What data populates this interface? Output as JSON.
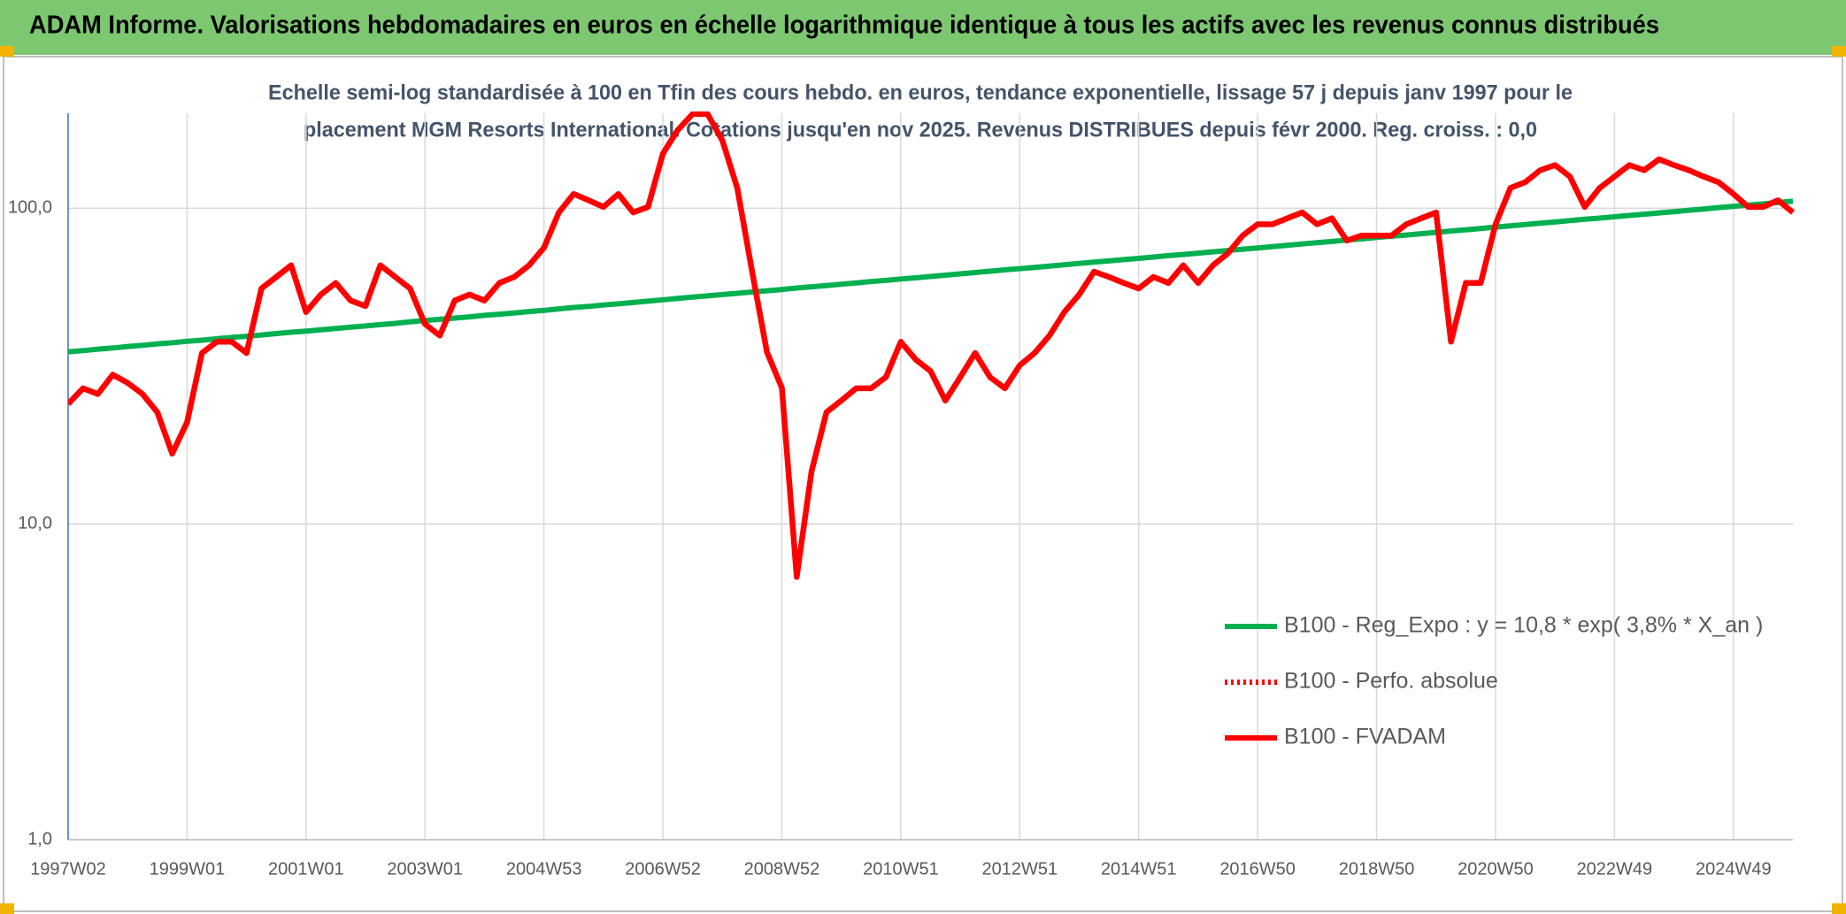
{
  "chart_data": {
    "type": "line",
    "title": "ADAM Informe. Valorisations hebdomadaires en euros en échelle logarithmique identique à tous les actifs avec les revenus connus distribués",
    "subtitle_lines": [
      "Echelle semi-log standardisée à 100 en Tfin des cours hebdo. en euros, tendance exponentielle, lissage 57 j depuis janv 1997 pour le",
      "placement MGM Resorts International. Cotations jusqu'en nov 2025. Revenus DISTRIBUES depuis févr 2000. Reg. croiss. : 0,0"
    ],
    "categories": [
      "1997W02",
      null,
      null,
      null,
      null,
      null,
      null,
      null,
      "1999W01",
      null,
      null,
      null,
      null,
      null,
      null,
      null,
      "2001W01",
      null,
      null,
      null,
      null,
      null,
      null,
      null,
      "2003W01",
      null,
      null,
      null,
      null,
      null,
      null,
      null,
      "2004W53",
      null,
      null,
      null,
      null,
      null,
      null,
      null,
      "2006W52",
      null,
      null,
      null,
      null,
      null,
      null,
      null,
      "2008W52",
      null,
      null,
      null,
      null,
      null,
      null,
      null,
      "2010W51",
      null,
      null,
      null,
      null,
      null,
      null,
      null,
      "2012W51",
      null,
      null,
      null,
      null,
      null,
      null,
      null,
      "2014W51",
      null,
      null,
      null,
      null,
      null,
      null,
      null,
      "2016W50",
      null,
      null,
      null,
      null,
      null,
      null,
      null,
      "2018W50",
      null,
      null,
      null,
      null,
      null,
      null,
      null,
      "2020W50",
      null,
      null,
      null,
      null,
      null,
      null,
      null,
      "2022W49",
      null,
      null,
      null,
      null,
      null,
      null,
      null,
      "2024W49",
      null,
      null,
      null,
      null
    ],
    "series": [
      {
        "name": "B100 - Reg_Expo : y = 10,8 * exp( 3,8% *  X_an )",
        "color": "#00b050",
        "style": "solid",
        "values": [
          35.1,
          35.4,
          35.8,
          36.1,
          36.5,
          36.8,
          37.2,
          37.5,
          37.9,
          38.2,
          38.6,
          39.0,
          39.3,
          39.7,
          40.1,
          40.5,
          40.8,
          41.2,
          41.6,
          42.0,
          42.4,
          42.8,
          43.2,
          43.7,
          44.1,
          44.5,
          44.9,
          45.3,
          45.8,
          46.2,
          46.6,
          47.1,
          47.5,
          48.0,
          48.5,
          48.9,
          49.4,
          49.8,
          50.3,
          50.8,
          51.3,
          51.8,
          52.3,
          52.8,
          53.3,
          53.8,
          54.3,
          54.8,
          55.3,
          55.9,
          56.4,
          56.9,
          57.5,
          58.0,
          58.6,
          59.1,
          59.7,
          60.2,
          60.8,
          61.4,
          62.0,
          62.6,
          63.2,
          63.8,
          64.4,
          65.0,
          65.6,
          66.2,
          66.9,
          67.5,
          68.1,
          68.8,
          69.4,
          70.1,
          70.8,
          71.4,
          72.1,
          72.8,
          73.5,
          74.2,
          74.9,
          75.6,
          76.3,
          77.1,
          77.8,
          78.5,
          79.3,
          80.0,
          80.8,
          81.6,
          82.3,
          83.1,
          83.9,
          84.7,
          85.5,
          86.3,
          87.2,
          88.0,
          88.8,
          89.7,
          90.5,
          91.4,
          92.3,
          93.1,
          94.0,
          94.9,
          95.8,
          96.7,
          97.6,
          98.6,
          99.5,
          100.5,
          101.4,
          102.4,
          103.3,
          104.3,
          105.3
        ]
      },
      {
        "name": "B100 - Perfo. absolue",
        "color": "#ff0000",
        "style": "dotted",
        "values": [
          null,
          null,
          null,
          null,
          null,
          null,
          null,
          null,
          null,
          null,
          null,
          null,
          null,
          null,
          null,
          null,
          null,
          null,
          null,
          null,
          null,
          null,
          null,
          null,
          null,
          null,
          null,
          null,
          null,
          null,
          null,
          null,
          null,
          null,
          null,
          null,
          null,
          null,
          null,
          null,
          null,
          null,
          null,
          null,
          null,
          null,
          null,
          null,
          null,
          null,
          null,
          null,
          null,
          null,
          null,
          null,
          null,
          null,
          null,
          null,
          null,
          null,
          null,
          null,
          null,
          null,
          null,
          null,
          null,
          null,
          null,
          null,
          null,
          null,
          null,
          null,
          null,
          null,
          null,
          null,
          null,
          null,
          null,
          null,
          null,
          null,
          null,
          null,
          null,
          null,
          null,
          null,
          null,
          null,
          null,
          null,
          null,
          null,
          null,
          null,
          null,
          null,
          null,
          null,
          null,
          null,
          null,
          null,
          null,
          null,
          null,
          null,
          null,
          null,
          null,
          null,
          null
        ]
      },
      {
        "name": "B100 - FVADAM",
        "color": "#ff0000",
        "style": "solid",
        "values": [
          24,
          26.9,
          25.8,
          29.7,
          28,
          25.8,
          22.6,
          16.7,
          21,
          34.8,
          37.8,
          37.8,
          34.8,
          55.7,
          60.6,
          66,
          46.9,
          53.3,
          58,
          51,
          49,
          66,
          60.6,
          55.7,
          43,
          39.5,
          51,
          53.3,
          51,
          58,
          60.6,
          66,
          75,
          97,
          111,
          106,
          101,
          111,
          97,
          101,
          149,
          177,
          199,
          199,
          164,
          116,
          63,
          35,
          27,
          6.8,
          14.7,
          22.6,
          24.6,
          26.9,
          26.9,
          29.2,
          37.8,
          33.2,
          30.5,
          24.6,
          29.2,
          34.8,
          29.2,
          26.9,
          31.8,
          34.8,
          39.5,
          46.9,
          53.3,
          63,
          60.6,
          58,
          55.7,
          60.6,
          58,
          66,
          58,
          66,
          72,
          82,
          89,
          89,
          93,
          97,
          89,
          93,
          79,
          82,
          82,
          82,
          89,
          93,
          97,
          37.8,
          58,
          58,
          89,
          116,
          121,
          132,
          137,
          126,
          101,
          116,
          126,
          137,
          132,
          143,
          137,
          132,
          126,
          121,
          111,
          101,
          101,
          106,
          97
        ]
      }
    ],
    "ylim": [
      1,
      200
    ],
    "yticks": [
      {
        "value": 1,
        "label": "1,0"
      },
      {
        "value": 10,
        "label": "10,0"
      },
      {
        "value": 100,
        "label": "100,0"
      }
    ],
    "log_scale": true,
    "grid": true,
    "legend": "lower right"
  }
}
